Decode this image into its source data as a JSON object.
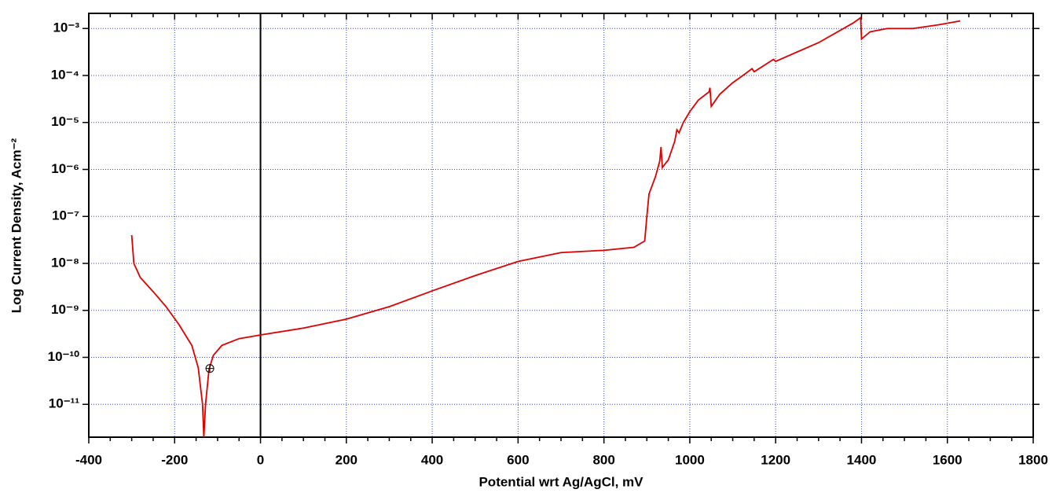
{
  "chart_data": {
    "type": "line",
    "x_label": "Potential wrt Ag/AgCl, mV",
    "y_label": "Log Current Density, Acm⁻²",
    "log_y": true,
    "grid": true,
    "xlim": [
      -400,
      1800
    ],
    "ylim": [
      2e-12,
      0.0021
    ],
    "xticks": [
      -400,
      -200,
      0,
      200,
      400,
      600,
      800,
      1000,
      1200,
      1400,
      1600,
      1800
    ],
    "yticks": [
      {
        "value": 1e-11,
        "label": "10⁻¹¹"
      },
      {
        "value": 1e-10,
        "label": "10⁻¹⁰"
      },
      {
        "value": 1e-09,
        "label": "10⁻⁹"
      },
      {
        "value": 1e-08,
        "label": "10⁻⁸"
      },
      {
        "value": 1e-07,
        "label": "10⁻⁷"
      },
      {
        "value": 1e-06,
        "label": "10⁻⁶"
      },
      {
        "value": 1e-05,
        "label": "10⁻⁵"
      },
      {
        "value": 0.0001,
        "label": "10⁻⁴"
      },
      {
        "value": 0.001,
        "label": "10⁻³"
      }
    ],
    "marker": {
      "x": -118,
      "y": 5.8e-11
    },
    "series": [
      {
        "color": "#dd0000",
        "x": [
          -300,
          -295,
          -280,
          -250,
          -220,
          -190,
          -160,
          -145,
          -135,
          -132,
          -128,
          -120,
          -110,
          -90,
          -50,
          0,
          100,
          200,
          300,
          400,
          500,
          600,
          700,
          800,
          870,
          895,
          900,
          905,
          920,
          930,
          933,
          936,
          950,
          965,
          970,
          975,
          985,
          1000,
          1020,
          1045,
          1047,
          1050,
          1070,
          1100,
          1130,
          1145,
          1150,
          1180,
          1195,
          1200,
          1300,
          1380,
          1398,
          1400,
          1420,
          1460,
          1520,
          1580,
          1630
        ],
        "values": [
          4e-08,
          1e-08,
          5e-09,
          2.5e-09,
          1.2e-09,
          5e-10,
          1.8e-10,
          6e-11,
          1e-11,
          2e-12,
          1e-11,
          5.5e-11,
          1.1e-10,
          1.8e-10,
          2.5e-10,
          3e-10,
          4.2e-10,
          6.5e-10,
          1.2e-09,
          2.6e-09,
          5.5e-09,
          1.1e-08,
          1.7e-08,
          1.9e-08,
          2.2e-08,
          3e-08,
          1e-07,
          3e-07,
          7e-07,
          1.5e-06,
          3e-06,
          1.1e-06,
          1.6e-06,
          4e-06,
          7e-06,
          6e-06,
          1e-05,
          1.7e-05,
          3e-05,
          4.5e-05,
          5.5e-05,
          2.2e-05,
          4e-05,
          7e-05,
          0.00011,
          0.00014,
          0.00012,
          0.00018,
          0.00022,
          0.0002,
          0.0005,
          0.0013,
          0.0017,
          0.0006,
          0.00085,
          0.001,
          0.001,
          0.0012,
          0.00145
        ]
      }
    ]
  }
}
